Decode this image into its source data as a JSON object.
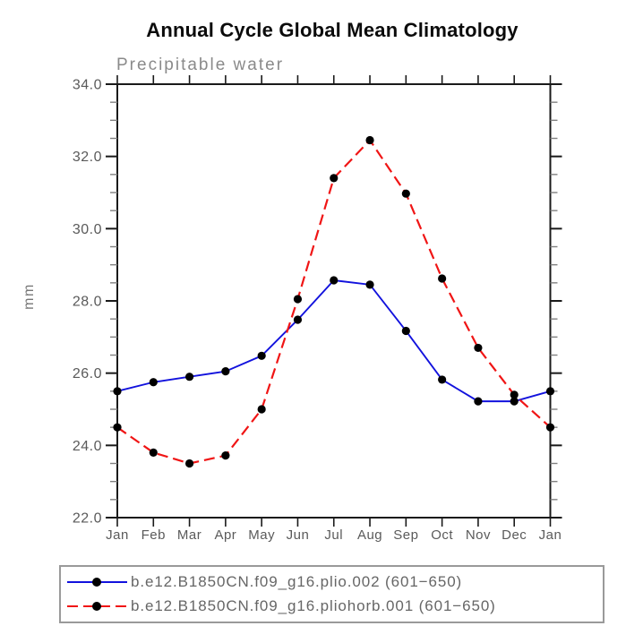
{
  "title": "Annual Cycle Global Mean Climatology",
  "chart_data": {
    "type": "line",
    "title": "Annual Cycle Global Mean Climatology",
    "subtitle": "Precipitable water",
    "xlabel": "",
    "ylabel": "mm",
    "categories": [
      "Jan",
      "Feb",
      "Mar",
      "Apr",
      "May",
      "Jun",
      "Jul",
      "Aug",
      "Sep",
      "Oct",
      "Nov",
      "Dec",
      "Jan"
    ],
    "ylim": [
      22.0,
      34.0
    ],
    "ytick_major": [
      22.0,
      24.0,
      26.0,
      28.0,
      30.0,
      32.0,
      34.0
    ],
    "ytick_labels": [
      "22.0",
      "24.0",
      "26.0",
      "28.0",
      "30.0",
      "32.0",
      "34.0"
    ],
    "ytick_minor_step": 0.5,
    "grid": false,
    "legend_position": "bottom",
    "series": [
      {
        "name": "b.e12.B1850CN.f09_g16.plio.002 (601−650)",
        "color": "#1212dd",
        "line_style": "solid",
        "marker": "black-dot",
        "values": [
          25.5,
          25.75,
          25.9,
          26.05,
          26.48,
          27.48,
          28.57,
          28.45,
          27.17,
          25.82,
          25.22,
          25.22,
          25.5
        ]
      },
      {
        "name": "b.e12.B1850CN.f09_g16.pliohorb.001 (601−650)",
        "color": "#f01515",
        "line_style": "dashed",
        "marker": "black-dot",
        "values": [
          24.5,
          23.8,
          23.5,
          23.72,
          25.0,
          28.05,
          31.4,
          32.45,
          30.97,
          28.62,
          26.7,
          25.4,
          24.5
        ]
      }
    ]
  },
  "legend": {
    "items": [
      {
        "label": "b.e12.B1850CN.f09_g16.plio.002 (601−650)",
        "line": "blue-solid",
        "marker": "black-dot"
      },
      {
        "label": "b.e12.B1850CN.f09_g16.pliohorb.001 (601−650)",
        "line": "red-dashed",
        "marker": "black-dot"
      }
    ]
  },
  "colors": {
    "axis": "#1a1a1a",
    "minor_tick": "#808080",
    "tick_label": "#5a5a5a",
    "subtitle": "#8a8a8a",
    "ylabel": "#777777",
    "marker": "#000000",
    "legend_border": "#9a9a9a",
    "legend_text": "#666666"
  }
}
